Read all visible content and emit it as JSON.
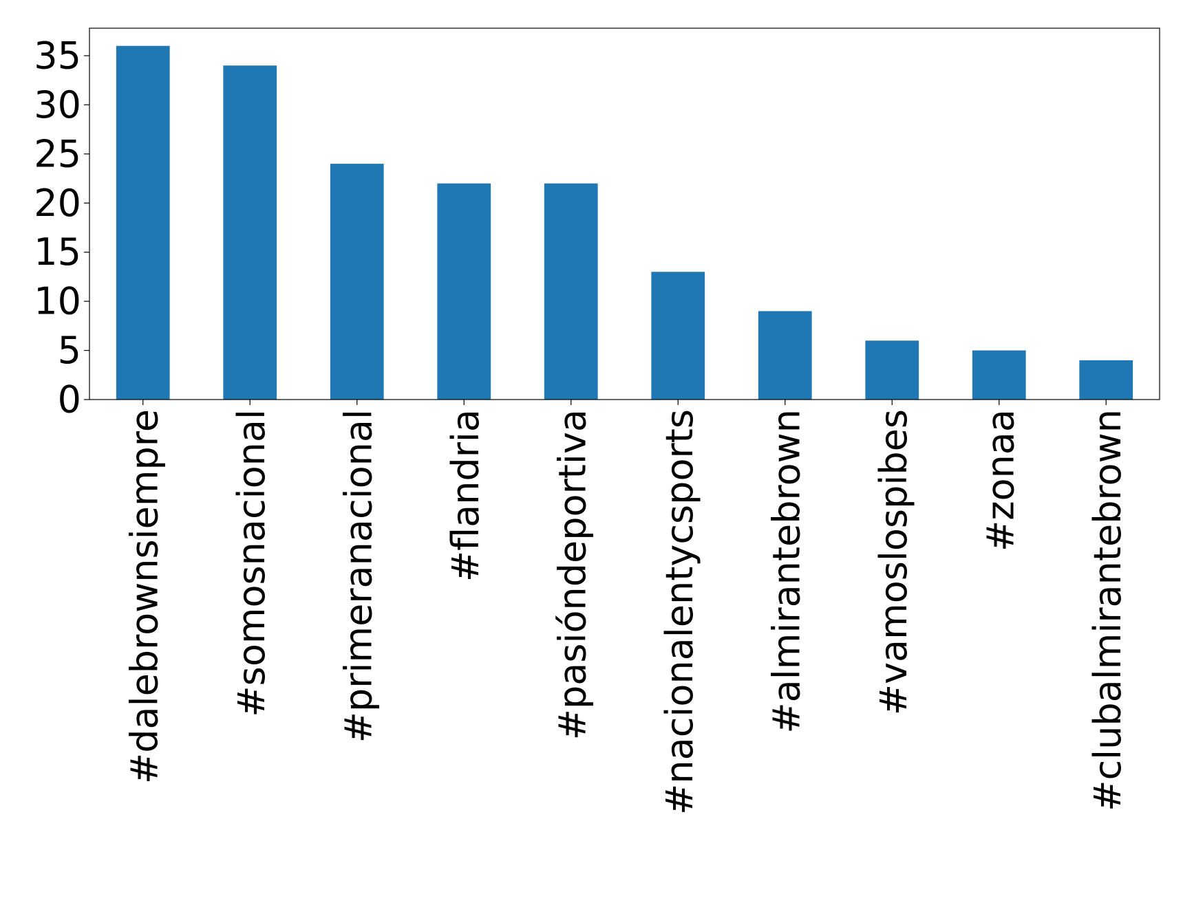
{
  "chart_data": {
    "type": "bar",
    "title": "",
    "xlabel": "",
    "ylabel": "",
    "categories": [
      "#dalebrownsiempre",
      "#somosnacional",
      "#primeranacional",
      "#flandria",
      "#pasióndeportiva",
      "#nacionalentycsports",
      "#almirantebrown",
      "#vamoslospibes",
      "#zonaa",
      "#clubalmirantebrown"
    ],
    "values": [
      36,
      34,
      24,
      22,
      22,
      13,
      9,
      6,
      5,
      4
    ],
    "ylim": [
      0,
      37.8
    ],
    "yticks": [
      0,
      5,
      10,
      15,
      20,
      25,
      30,
      35
    ],
    "grid": false,
    "legend": "none",
    "bar_color": "#1f77b4"
  }
}
